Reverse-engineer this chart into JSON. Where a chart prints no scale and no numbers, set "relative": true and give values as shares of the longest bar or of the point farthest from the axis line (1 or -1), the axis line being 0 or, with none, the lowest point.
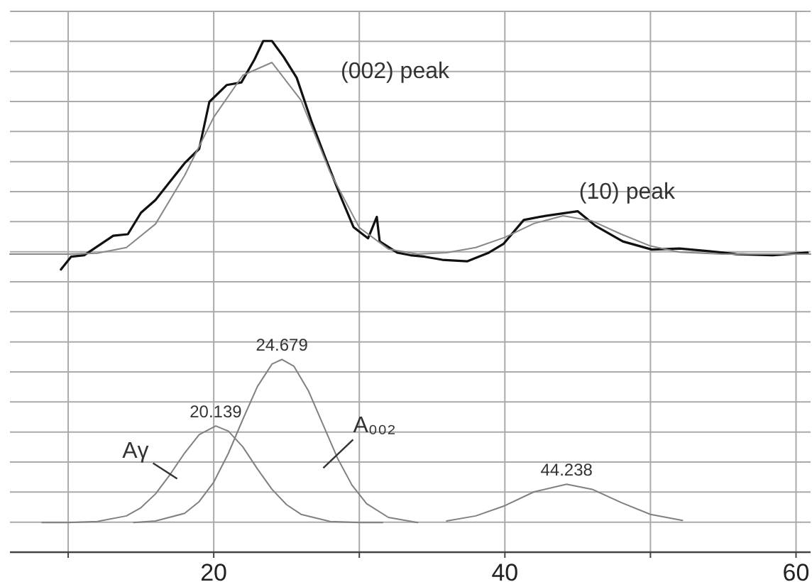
{
  "chart_data": {
    "type": "line",
    "relative": true,
    "grid": true,
    "marker": "none",
    "line_style": "solid",
    "xlim": [
      6,
      61
    ],
    "xticks": [
      {
        "value": 10,
        "label": null
      },
      20,
      {
        "value": 30,
        "label": null
      },
      40,
      {
        "value": 50,
        "label": null
      },
      60
    ],
    "series": [
      {
        "color": "#111111",
        "x": [
          9.5,
          10.2,
          11.1,
          12.1,
          13.1,
          14.1,
          15.0,
          16.0,
          17.0,
          18.0,
          19.0,
          19.7,
          20.9,
          21.9,
          22.8,
          23.4,
          24.0,
          24.8,
          25.7,
          26.7,
          27.7,
          28.7,
          29.6,
          30.6,
          31.2,
          31.4,
          32.6,
          33.5,
          34.5,
          35.7,
          37.4,
          38.9,
          39.9,
          41.3,
          42.8,
          45.0,
          46.2,
          48.1,
          50.1,
          52.0,
          54.0,
          55.9,
          58.4,
          60.8
        ],
        "values": [
          0.553,
          0.578,
          0.581,
          0.6,
          0.619,
          0.622,
          0.664,
          0.689,
          0.725,
          0.761,
          0.789,
          0.881,
          0.914,
          0.919,
          0.964,
          1.0,
          1.0,
          0.969,
          0.928,
          0.844,
          0.769,
          0.697,
          0.636,
          0.614,
          0.656,
          0.608,
          0.586,
          0.581,
          0.578,
          0.572,
          0.569,
          0.586,
          0.603,
          0.65,
          0.658,
          0.667,
          0.639,
          0.608,
          0.592,
          0.594,
          0.589,
          0.583,
          0.581,
          0.586
        ]
      },
      {
        "color": "#888888",
        "x": [
          6,
          10,
          12,
          14,
          16,
          18,
          20,
          22,
          24,
          26,
          28,
          30,
          32,
          34,
          36,
          38,
          40,
          42,
          44,
          46,
          48,
          50,
          52,
          55,
          61
        ],
        "values": [
          0.583,
          0.583,
          0.585,
          0.596,
          0.642,
          0.737,
          0.851,
          0.933,
          0.958,
          0.884,
          0.743,
          0.635,
          0.593,
          0.583,
          0.586,
          0.596,
          0.616,
          0.643,
          0.658,
          0.648,
          0.622,
          0.599,
          0.587,
          0.583,
          0.583
        ]
      },
      {
        "color": "#808080",
        "x": [
          8.2,
          10,
          12,
          14,
          15,
          16,
          17,
          18,
          19,
          20.139,
          21,
          22,
          23,
          24,
          25,
          26,
          28,
          30,
          31.6
        ],
        "values": [
          0.058,
          0.058,
          0.06,
          0.071,
          0.087,
          0.114,
          0.152,
          0.194,
          0.23,
          0.247,
          0.237,
          0.206,
          0.163,
          0.123,
          0.093,
          0.074,
          0.06,
          0.058,
          0.058
        ]
      },
      {
        "color": "#808080",
        "x": [
          14.5,
          16,
          18,
          19,
          20,
          21,
          22,
          23,
          24,
          24.679,
          25.5,
          26.5,
          27.5,
          28.5,
          29.5,
          30.5,
          32,
          34
        ],
        "values": [
          0.058,
          0.061,
          0.076,
          0.099,
          0.137,
          0.193,
          0.26,
          0.324,
          0.368,
          0.377,
          0.364,
          0.316,
          0.25,
          0.184,
          0.131,
          0.095,
          0.068,
          0.058
        ]
      },
      {
        "color": "#808080",
        "x": [
          36,
          38,
          40,
          42,
          44.238,
          46,
          48,
          50,
          52.2
        ],
        "values": [
          0.061,
          0.071,
          0.091,
          0.118,
          0.133,
          0.123,
          0.097,
          0.074,
          0.062
        ]
      }
    ],
    "annotations": [
      "(002) peak",
      {
        "text": "(10) peak",
        "x": 45.0,
        "y": 0.667
      },
      {
        "text": "24.679",
        "x": 24.679,
        "y": 0.377
      },
      {
        "text": "20.139",
        "x": 20.139,
        "y": 0.247
      },
      {
        "text": "44.238",
        "x": 44.238,
        "y": 0.133
      },
      {
        "text": "Aγ",
        "x": 17,
        "y": 0.152
      },
      {
        "text": "A₀₀₂",
        "x": 28.5,
        "y": 0.184
      }
    ]
  }
}
